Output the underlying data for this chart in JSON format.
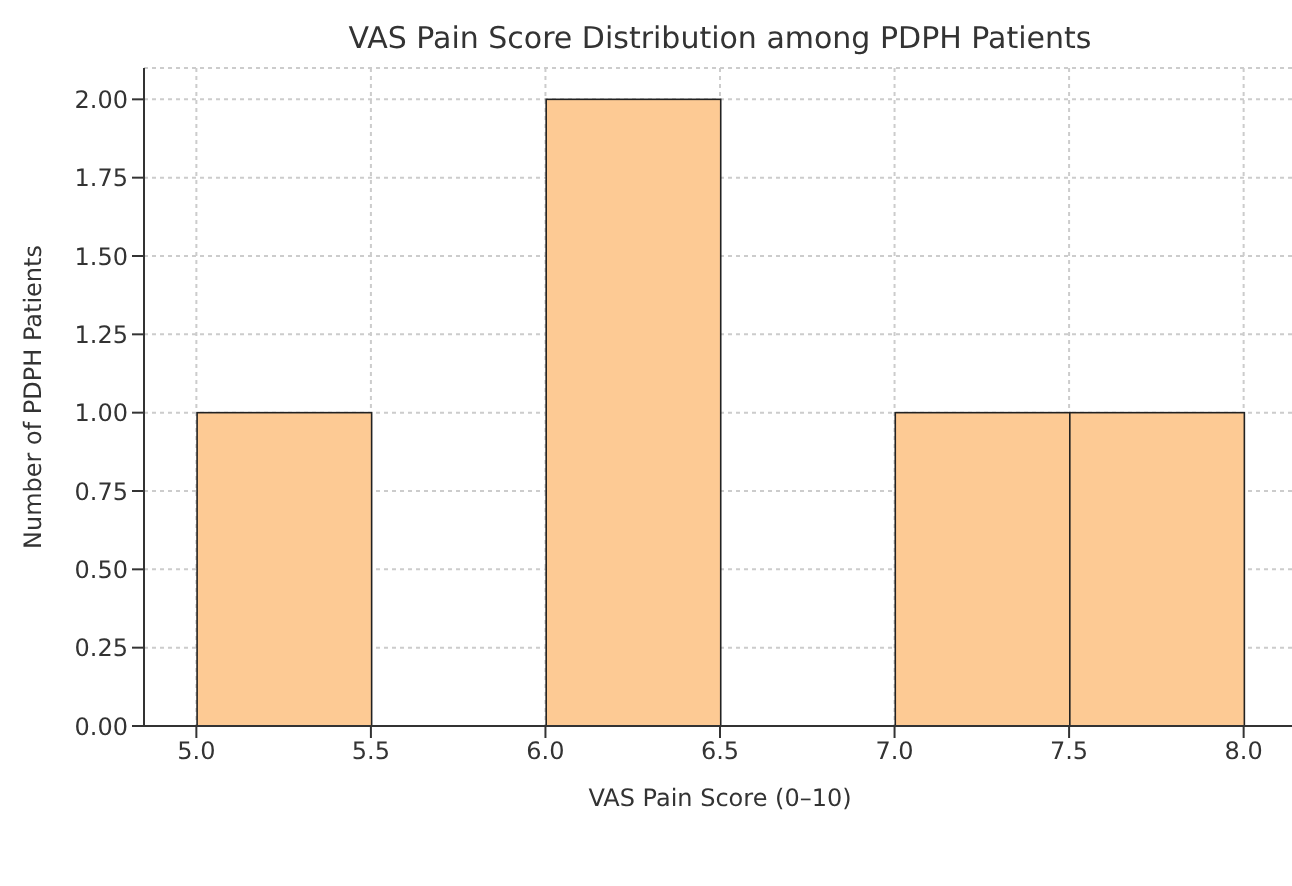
{
  "chart_data": {
    "type": "histogram",
    "title": "VAS Pain Score Distribution among PDPH Patients",
    "xlabel": "VAS Pain Score (0–10)",
    "ylabel": "Number of PDPH Patients",
    "bins": [
      5.0,
      5.5,
      6.0,
      6.5,
      7.0,
      7.5,
      8.0
    ],
    "values": [
      1,
      0,
      2,
      0,
      1,
      1
    ],
    "color": "#fdca94",
    "xlim": [
      4.85,
      8.15
    ],
    "xticks": [
      {
        "value": 5,
        "label": "5.0"
      },
      {
        "value": 5.5,
        "label": "5.5"
      },
      {
        "value": 6,
        "label": "6.0"
      },
      {
        "value": 6.5,
        "label": "6.5"
      },
      {
        "value": 7,
        "label": "7.0"
      },
      {
        "value": 7.5,
        "label": "7.5"
      },
      {
        "value": 8,
        "label": "8.0"
      }
    ],
    "ylim": [
      0,
      2.1
    ],
    "yticks": [
      {
        "value": 0,
        "label": "0.00"
      },
      {
        "value": 0.25,
        "label": "0.25"
      },
      {
        "value": 0.5,
        "label": "0.50"
      },
      {
        "value": 0.75,
        "label": "0.75"
      },
      {
        "value": 1,
        "label": "1.00"
      },
      {
        "value": 1.25,
        "label": "1.25"
      },
      {
        "value": 1.5,
        "label": "1.50"
      },
      {
        "value": 1.75,
        "label": "1.75"
      },
      {
        "value": 2,
        "label": "2.00"
      }
    ],
    "grid": true
  }
}
